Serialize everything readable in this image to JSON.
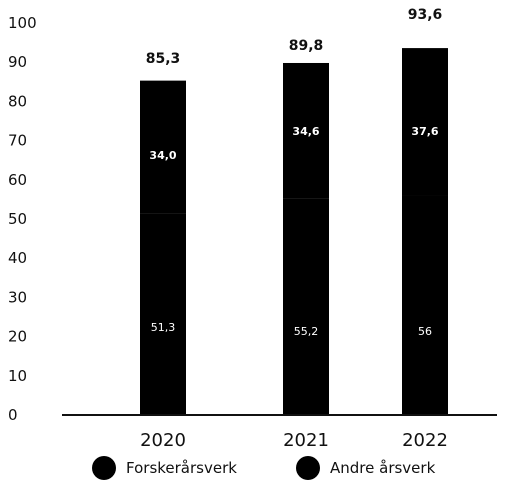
{
  "chart_data": {
    "type": "bar",
    "stacked": true,
    "categories": [
      "2020",
      "2021",
      "2022"
    ],
    "series": [
      {
        "name": "Forskerårsverk",
        "values": [
          51.3,
          55.2,
          56.0
        ],
        "labels": [
          "51,3",
          "55,2",
          "56"
        ],
        "color": "#000000"
      },
      {
        "name": "Andre årsverk",
        "values": [
          34.0,
          34.6,
          37.6
        ],
        "labels": [
          "34,0",
          "34,6",
          "37,6"
        ],
        "color": "#000000"
      }
    ],
    "totals": [
      85.3,
      89.8,
      93.6
    ],
    "total_labels": [
      "85,3",
      "89,8",
      "93,6"
    ],
    "yticks": [
      "0",
      "10",
      "20",
      "30",
      "40",
      "50",
      "60",
      "70",
      "80",
      "90",
      "100"
    ],
    "ylim": [
      0,
      100
    ],
    "grid": false,
    "legend_position": "bottom",
    "title": "",
    "xlabel": "",
    "ylabel": ""
  }
}
